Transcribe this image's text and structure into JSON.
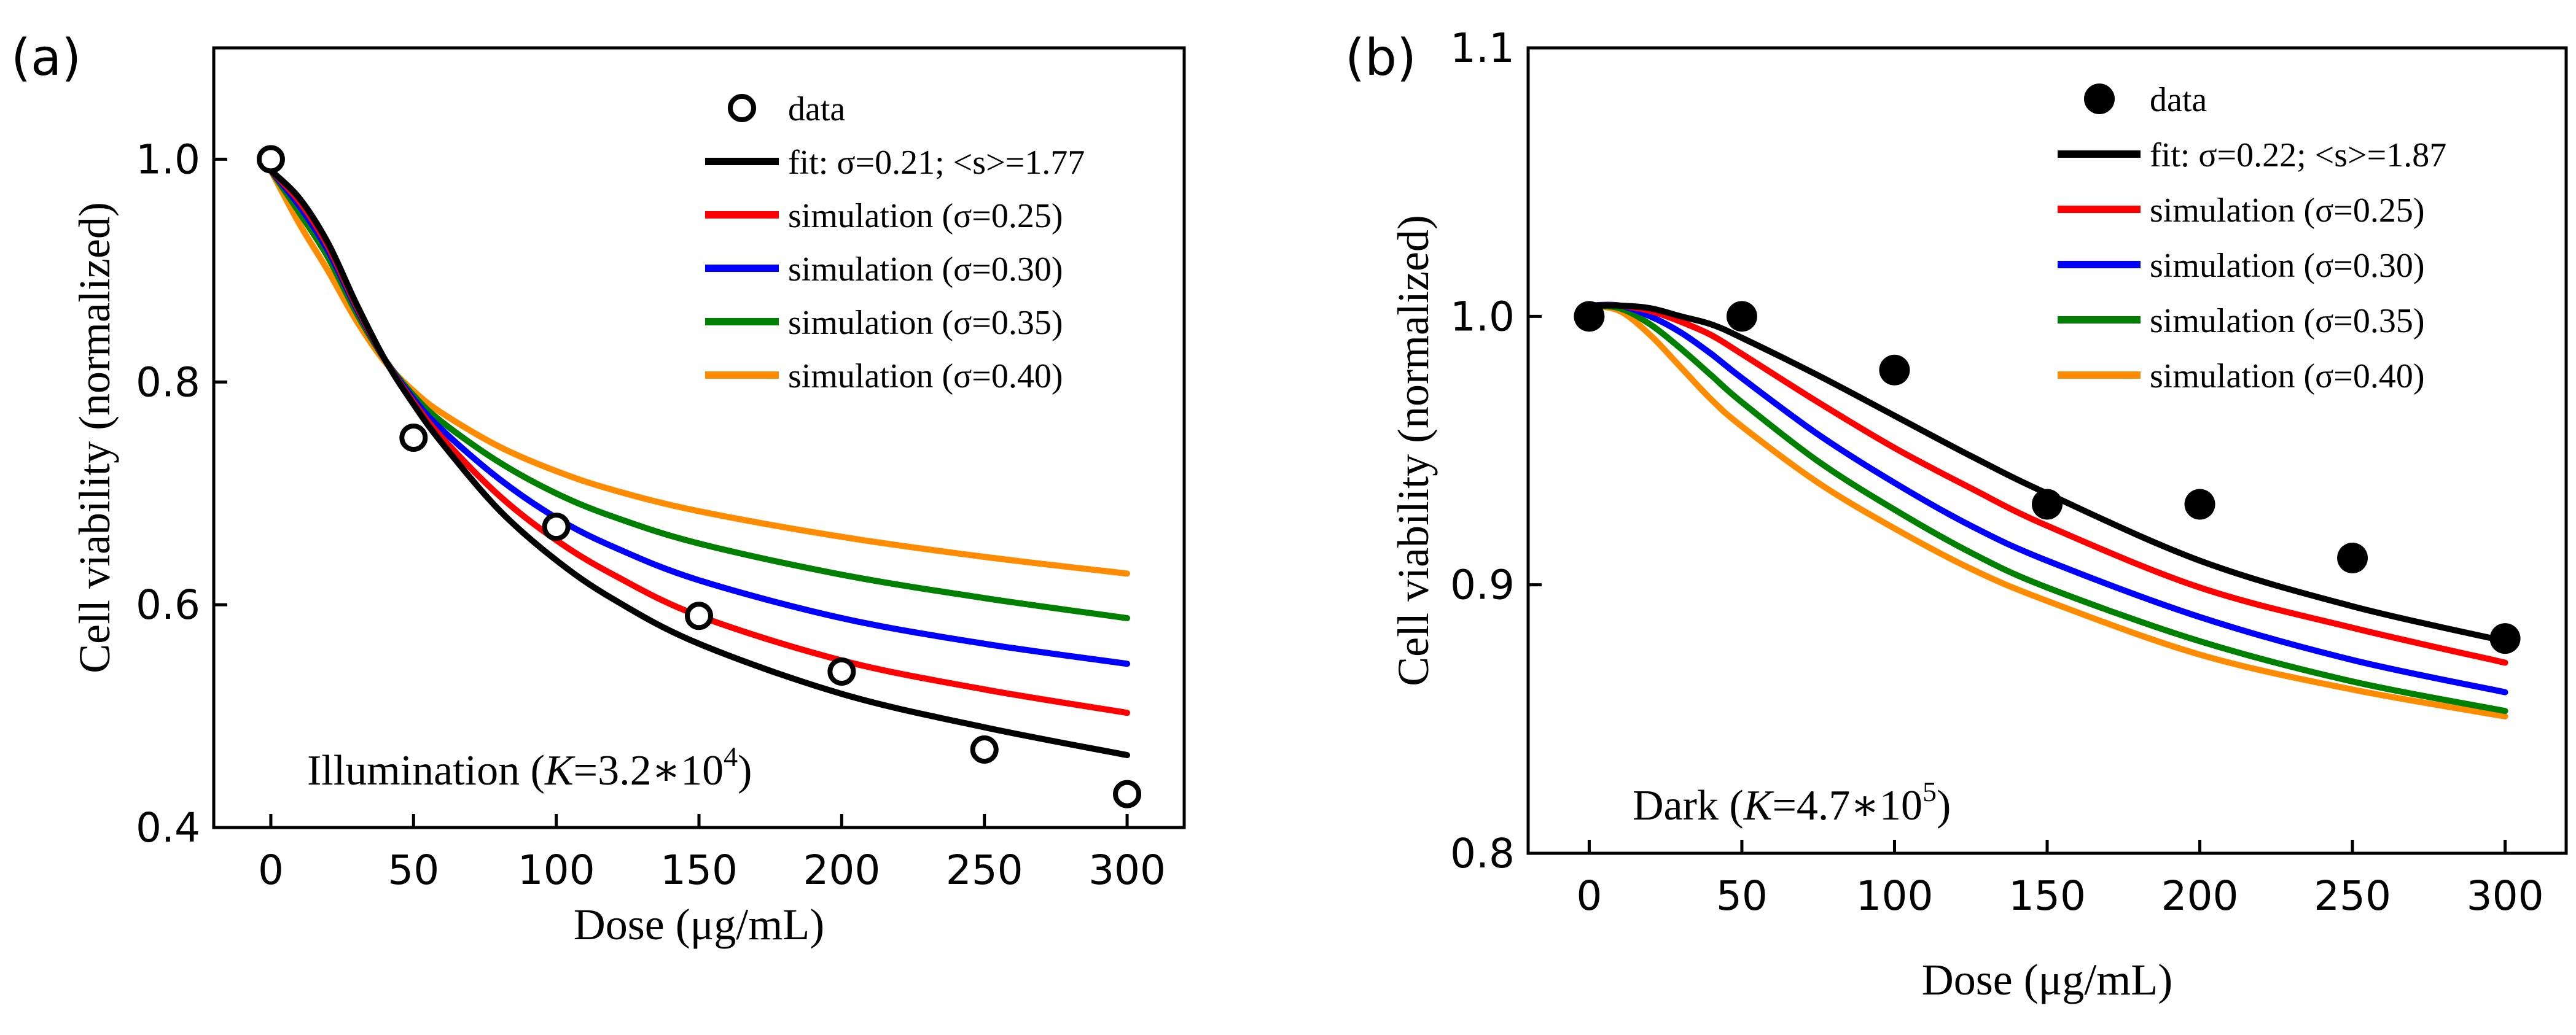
{
  "chart_data": [
    {
      "type": "line",
      "panel_label": "(a)",
      "title": "",
      "xlabel": "Dose (μg/mL)",
      "ylabel": "Cell viability (normalized)",
      "xlim": [
        -20,
        320
      ],
      "ylim": [
        0.4,
        1.1
      ],
      "xticks": [
        0,
        50,
        100,
        150,
        200,
        250,
        300
      ],
      "yticks": [
        0.4,
        0.6,
        0.8,
        1.0
      ],
      "xtick_labels": [
        "0",
        "50",
        "100",
        "150",
        "200",
        "250",
        "300"
      ],
      "ytick_labels": [
        "0.4",
        "0.6",
        "0.8",
        "1.0"
      ],
      "grid": false,
      "legend_position": "top-right",
      "annotation": {
        "prefix": "Illumination (",
        "var": "K",
        "eq": "=3.2∗10",
        "exp": "4",
        "suffix": ")"
      },
      "data": {
        "name": "data",
        "marker": "open-circle",
        "x": [
          0,
          50,
          100,
          150,
          200,
          250,
          300
        ],
        "y": [
          1.0,
          0.75,
          0.67,
          0.59,
          0.54,
          0.47,
          0.43
        ]
      },
      "series": [
        {
          "name": "fit: σ=0.21; <s>=1.77",
          "color": "#000000",
          "x": [
            0,
            10,
            20,
            30,
            40,
            50,
            60,
            80,
            100,
            120,
            150,
            200,
            250,
            300
          ],
          "y": [
            0.99,
            0.965,
            0.925,
            0.87,
            0.82,
            0.78,
            0.745,
            0.685,
            0.64,
            0.605,
            0.565,
            0.52,
            0.49,
            0.465
          ]
        },
        {
          "name": "simulation (σ=0.25)",
          "color": "#ff0000",
          "x": [
            0,
            10,
            20,
            30,
            40,
            50,
            60,
            80,
            100,
            120,
            150,
            200,
            250,
            300
          ],
          "y": [
            0.99,
            0.962,
            0.922,
            0.868,
            0.82,
            0.782,
            0.75,
            0.698,
            0.658,
            0.627,
            0.59,
            0.55,
            0.524,
            0.503
          ]
        },
        {
          "name": "simulation (σ=0.30)",
          "color": "#0000ff",
          "x": [
            0,
            10,
            20,
            30,
            40,
            50,
            60,
            80,
            100,
            120,
            150,
            200,
            250,
            300
          ],
          "y": [
            0.99,
            0.958,
            0.918,
            0.866,
            0.82,
            0.785,
            0.757,
            0.713,
            0.678,
            0.652,
            0.622,
            0.588,
            0.565,
            0.547
          ]
        },
        {
          "name": "simulation (σ=0.35)",
          "color": "#008000",
          "x": [
            0,
            10,
            20,
            30,
            40,
            50,
            60,
            80,
            100,
            120,
            150,
            200,
            250,
            300
          ],
          "y": [
            0.99,
            0.952,
            0.912,
            0.862,
            0.82,
            0.788,
            0.764,
            0.728,
            0.7,
            0.679,
            0.655,
            0.627,
            0.606,
            0.588
          ]
        },
        {
          "name": "simulation (σ=0.40)",
          "color": "#ff8c00",
          "x": [
            0,
            10,
            20,
            30,
            40,
            50,
            60,
            80,
            100,
            120,
            150,
            200,
            250,
            300
          ],
          "y": [
            0.99,
            0.942,
            0.9,
            0.855,
            0.818,
            0.792,
            0.772,
            0.742,
            0.72,
            0.703,
            0.684,
            0.661,
            0.643,
            0.628
          ]
        }
      ]
    },
    {
      "type": "line",
      "panel_label": "(b)",
      "title": "",
      "xlabel": "Dose (μg/mL)",
      "ylabel": "Cell viability (normalized)",
      "xlim": [
        -20,
        320
      ],
      "ylim": [
        0.8,
        1.1
      ],
      "xticks": [
        0,
        50,
        100,
        150,
        200,
        250,
        300
      ],
      "yticks": [
        0.8,
        0.9,
        1.0,
        1.1
      ],
      "xtick_labels": [
        "0",
        "50",
        "100",
        "150",
        "200",
        "250",
        "300"
      ],
      "ytick_labels": [
        "0.8",
        "0.9",
        "1.0",
        "1.1"
      ],
      "grid": false,
      "legend_position": "top-right",
      "annotation": {
        "prefix": "Dark (",
        "var": "K",
        "eq": "=4.7∗10",
        "exp": "5",
        "suffix": ")"
      },
      "data": {
        "name": "data",
        "marker": "filled-circle",
        "x": [
          0,
          50,
          100,
          150,
          200,
          250,
          300
        ],
        "y": [
          1.0,
          1.0,
          0.98,
          0.93,
          0.93,
          0.91,
          0.88
        ]
      },
      "series": [
        {
          "name": "fit: σ=0.22; <s>=1.87",
          "color": "#000000",
          "x": [
            0,
            10,
            20,
            30,
            40,
            50,
            75,
            100,
            125,
            150,
            200,
            250,
            300
          ],
          "y": [
            1.004,
            1.004,
            1.003,
            1.0,
            0.997,
            0.992,
            0.978,
            0.963,
            0.948,
            0.934,
            0.909,
            0.892,
            0.879
          ]
        },
        {
          "name": "simulation (σ=0.25)",
          "color": "#ff0000",
          "x": [
            0,
            10,
            20,
            30,
            40,
            50,
            75,
            100,
            125,
            150,
            200,
            250,
            300
          ],
          "y": [
            1.004,
            1.004,
            1.002,
            0.998,
            0.993,
            0.986,
            0.968,
            0.951,
            0.936,
            0.922,
            0.899,
            0.884,
            0.871
          ]
        },
        {
          "name": "simulation (σ=0.30)",
          "color": "#0000ff",
          "x": [
            0,
            10,
            20,
            30,
            40,
            50,
            75,
            100,
            125,
            150,
            200,
            250,
            300
          ],
          "y": [
            1.004,
            1.004,
            1.0,
            0.994,
            0.986,
            0.977,
            0.956,
            0.938,
            0.922,
            0.909,
            0.888,
            0.872,
            0.86
          ]
        },
        {
          "name": "simulation (σ=0.35)",
          "color": "#008000",
          "x": [
            0,
            10,
            20,
            30,
            40,
            50,
            75,
            100,
            125,
            150,
            200,
            250,
            300
          ],
          "y": [
            1.004,
            1.003,
            0.997,
            0.988,
            0.978,
            0.968,
            0.946,
            0.928,
            0.912,
            0.899,
            0.879,
            0.864,
            0.853
          ]
        },
        {
          "name": "simulation (σ=0.40)",
          "color": "#ff8c00",
          "x": [
            0,
            10,
            20,
            30,
            40,
            50,
            75,
            100,
            125,
            150,
            200,
            250,
            300
          ],
          "y": [
            1.004,
            1.002,
            0.993,
            0.981,
            0.969,
            0.959,
            0.938,
            0.921,
            0.906,
            0.894,
            0.874,
            0.861,
            0.851
          ]
        }
      ]
    }
  ]
}
